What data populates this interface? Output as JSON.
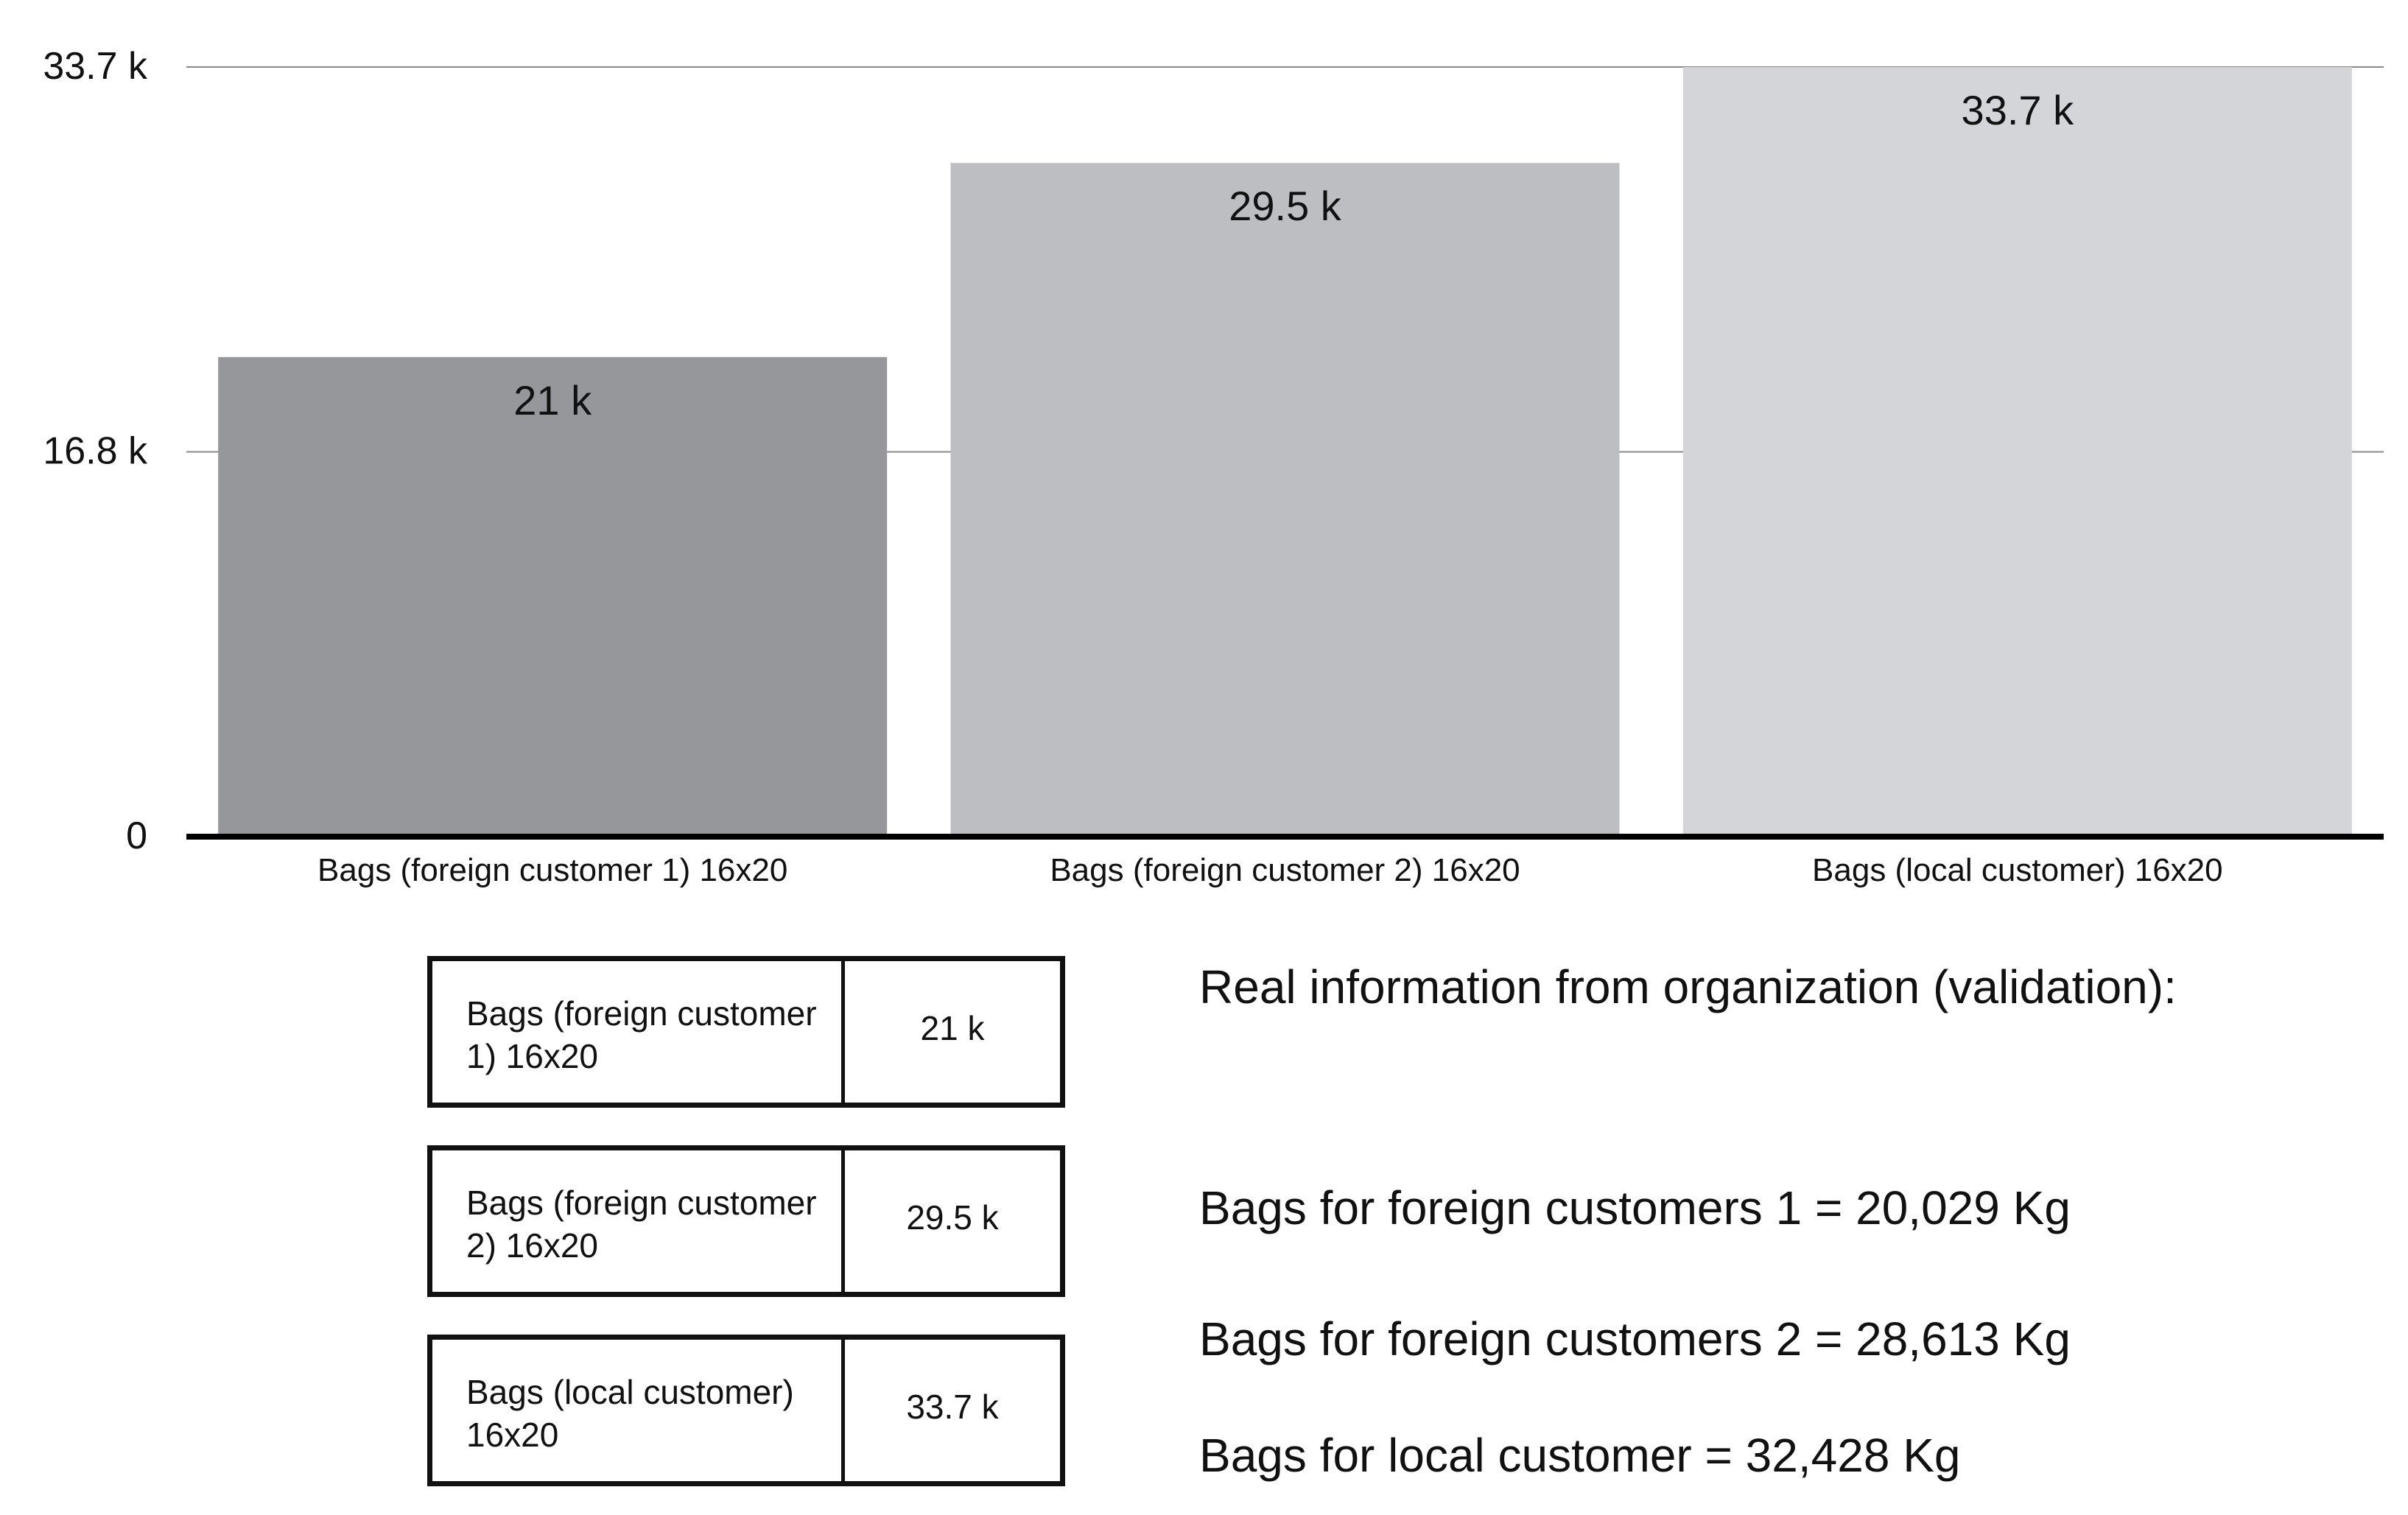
{
  "chart_data": {
    "type": "bar",
    "categories": [
      "Bags (foreign customer 1) 16x20",
      "Bags (foreign customer 2) 16x20",
      "Bags (local customer) 16x20"
    ],
    "values": [
      21000,
      29500,
      33700
    ],
    "data_labels": [
      "21 k",
      "29.5 k",
      "33.7 k"
    ],
    "bar_colors": [
      "#96979b",
      "#bdbec2",
      "#d3d5d8"
    ],
    "ylim": [
      0,
      33700
    ],
    "yticks": [
      {
        "value": 0,
        "label": "0"
      },
      {
        "value": 16850,
        "label": "16.8 k"
      },
      {
        "value": 33700,
        "label": "33.7 k"
      }
    ],
    "grid": true,
    "title": "",
    "xlabel": "",
    "ylabel": ""
  },
  "legend": [
    {
      "name": "Bags (foreign customer 1) 16x20",
      "value": "21 k"
    },
    {
      "name": "Bags (foreign customer 2) 16x20",
      "value": "29.5 k"
    },
    {
      "name": "Bags (local customer) 16x20",
      "value": "33.7 k"
    }
  ],
  "notes": {
    "heading": "Real information from organization (validation):",
    "lines": [
      "Bags for foreign customers 1 = 20,029 Kg",
      "Bags for foreign customers 2 = 28,613 Kg",
      "Bags for local customer = 32,428 Kg"
    ]
  }
}
